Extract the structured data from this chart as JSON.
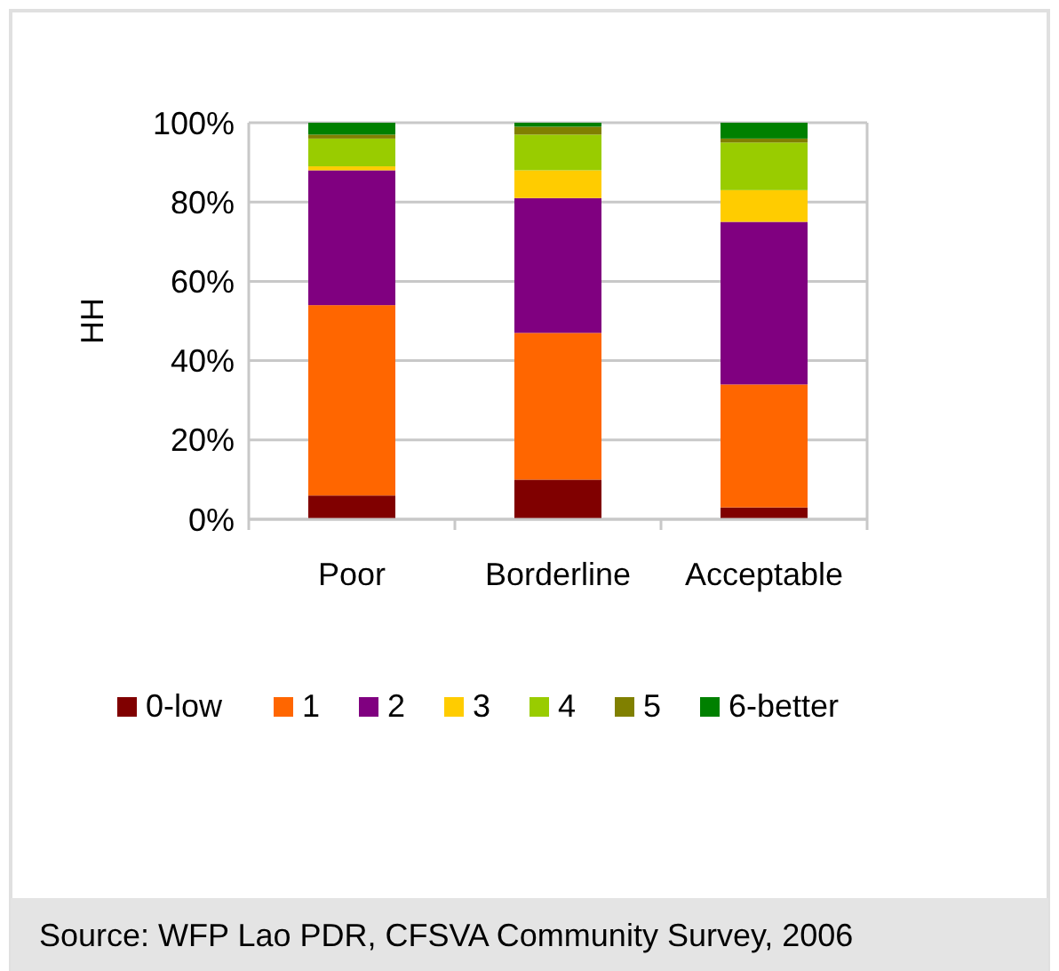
{
  "chart_data": {
    "type": "bar",
    "stacked": true,
    "ylabel": "HH",
    "categories": [
      "Poor",
      "Borderline",
      "Acceptable"
    ],
    "series": [
      {
        "name": "0-low",
        "color": "#800000",
        "values": [
          6,
          10,
          3
        ]
      },
      {
        "name": "1",
        "color": "#ff6600",
        "values": [
          48,
          37,
          31
        ]
      },
      {
        "name": "2",
        "color": "#800080",
        "values": [
          34,
          34,
          41
        ]
      },
      {
        "name": "3",
        "color": "#ffcc00",
        "values": [
          1,
          7,
          8
        ]
      },
      {
        "name": "4",
        "color": "#99cc00",
        "values": [
          7,
          9,
          12
        ]
      },
      {
        "name": "5",
        "color": "#808000",
        "values": [
          1,
          2,
          1
        ]
      },
      {
        "name": "6-better",
        "color": "#008000",
        "values": [
          3,
          1,
          4
        ]
      }
    ],
    "ylim": [
      0,
      100
    ],
    "yticks": [
      {
        "value": 0,
        "label": "0%"
      },
      {
        "value": 20,
        "label": "20%"
      },
      {
        "value": 40,
        "label": "40%"
      },
      {
        "value": 60,
        "label": "60%"
      },
      {
        "value": 80,
        "label": "80%"
      },
      {
        "value": 100,
        "label": "100%"
      }
    ],
    "grid": "y",
    "legend": "bottom",
    "annotations": [
      "Source: WFP Lao PDR, CFSVA Community Survey, 2006"
    ]
  }
}
